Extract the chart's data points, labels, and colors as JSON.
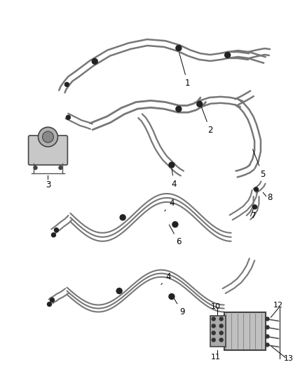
{
  "background_color": "#ffffff",
  "line_color": "#666666",
  "fig_width": 4.38,
  "fig_height": 5.33,
  "dpi": 100,
  "tube_color": "#777777",
  "clamp_color": "#222222",
  "label_color": "#000000"
}
